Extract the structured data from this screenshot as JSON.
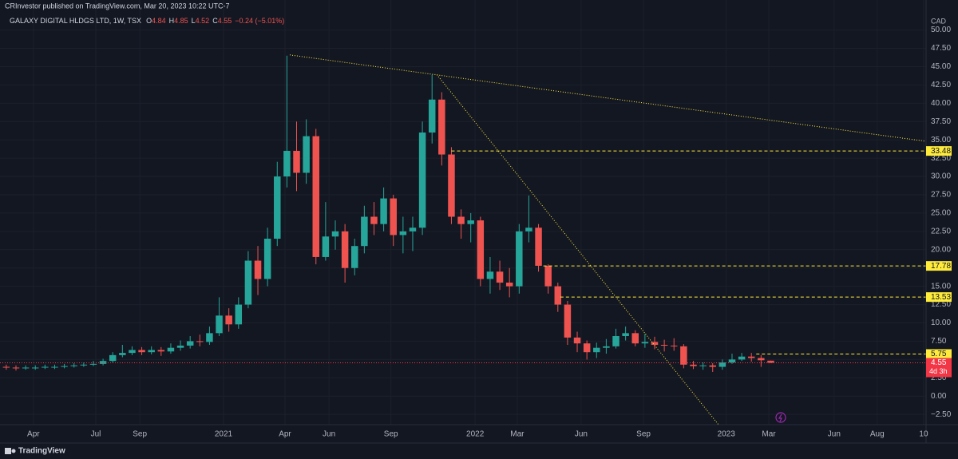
{
  "chart_data": {
    "type": "candlestick",
    "published": "CRInvestor published on TradingView.com, Mar 20, 2023 10:22 UTC-7",
    "symbol": "GALAXY DIGITAL HLDGS LTD, 1W, TSX",
    "ohlc_labels": [
      "O",
      "H",
      "L",
      "C"
    ],
    "change": "−0.24 (−5.01%)",
    "currency": "CAD",
    "countdown": "4d 3h",
    "brand": "TradingView",
    "up_color": "#26a69a",
    "down_color": "#ef5350",
    "grid": true,
    "xlim": [
      -1.3,
      190.1
    ],
    "ylim": [
      -3.9,
      54.1
    ],
    "xticks": [
      {
        "value": 5.6,
        "label": "Apr"
      },
      {
        "value": 18.5,
        "label": "Jul"
      },
      {
        "value": 27.6,
        "label": "Sep"
      },
      {
        "value": 44.9,
        "label": "2021"
      },
      {
        "value": 57.6,
        "label": "Apr"
      },
      {
        "value": 66.7,
        "label": "Jun"
      },
      {
        "value": 79.5,
        "label": "Sep"
      },
      {
        "value": 96.9,
        "label": "2022"
      },
      {
        "value": 105.6,
        "label": "Mar"
      },
      {
        "value": 118.8,
        "label": "Jun"
      },
      {
        "value": 131.7,
        "label": "Sep"
      },
      {
        "value": 148.8,
        "label": "2023"
      },
      {
        "value": 157.6,
        "label": "Mar"
      },
      {
        "value": 171.1,
        "label": "Jun"
      },
      {
        "value": 180,
        "label": "Aug"
      },
      {
        "value": 189.6,
        "label": "10"
      }
    ],
    "yticks": [
      {
        "value": -2.5,
        "label": "−2.50"
      },
      {
        "value": 0,
        "label": "0.00"
      },
      {
        "value": 2.5,
        "label": "2.50"
      },
      {
        "value": 5,
        "label": "5.00"
      },
      {
        "value": 7.5,
        "label": "7.50"
      },
      {
        "value": 10,
        "label": "10.00"
      },
      {
        "value": 12.5,
        "label": "12.50"
      },
      {
        "value": 15,
        "label": "15.00"
      },
      {
        "value": 17.5,
        "label": "17.50"
      },
      {
        "value": 20,
        "label": "20.00"
      },
      {
        "value": 22.5,
        "label": "22.50"
      },
      {
        "value": 25,
        "label": "25.00"
      },
      {
        "value": 27.5,
        "label": "27.50"
      },
      {
        "value": 30,
        "label": "30.00"
      },
      {
        "value": 32.5,
        "label": "32.50"
      },
      {
        "value": 35,
        "label": "35.00"
      },
      {
        "value": 37.5,
        "label": "37.50"
      },
      {
        "value": 40,
        "label": "40.00"
      },
      {
        "value": 42.5,
        "label": "42.50"
      },
      {
        "value": 45,
        "label": "45.00"
      },
      {
        "value": 47.5,
        "label": "47.50"
      },
      {
        "value": 50,
        "label": "50.00"
      }
    ],
    "levels": [
      {
        "value": 33.48,
        "start_x": 92
      },
      {
        "value": 17.78,
        "start_x": 111
      },
      {
        "value": 13.53,
        "start_x": 114.5
      },
      {
        "value": 5.75,
        "start_x": 155
      }
    ],
    "level_color": "#ffeb3b",
    "price_color": "#f23645",
    "trendlines": [
      {
        "x": [
          58.6,
          190.1
        ],
        "y": [
          46.6,
          34.8
        ]
      },
      {
        "x": [
          89,
          147.2
        ],
        "y": [
          43.9,
          -3.9
        ]
      }
    ],
    "x": [
      0,
      2,
      4,
      6,
      8,
      10,
      12,
      14,
      16,
      18,
      20,
      22,
      24,
      26,
      28,
      30,
      32,
      34,
      36,
      38,
      40,
      42,
      44,
      46,
      48,
      50,
      52,
      54,
      56,
      58,
      60,
      62,
      64,
      66,
      68,
      70,
      72,
      74,
      76,
      78,
      80,
      82,
      84,
      86,
      88,
      90,
      92,
      94,
      96,
      98,
      100,
      102,
      104,
      106,
      108,
      110,
      112,
      114,
      116,
      118,
      120,
      122,
      124,
      126,
      128,
      130,
      132,
      134,
      136,
      138,
      140,
      142,
      144,
      146,
      148,
      150,
      152,
      154,
      156,
      158
    ],
    "open": [
      4.0,
      3.9,
      3.8,
      3.9,
      3.9,
      4.0,
      4.0,
      4.1,
      4.2,
      4.3,
      4.4,
      4.8,
      5.6,
      5.9,
      6.3,
      6.0,
      6.3,
      6.1,
      6.6,
      6.9,
      7.5,
      7.4,
      8.6,
      11.0,
      9.8,
      12.5,
      18.5,
      16.0,
      21.5,
      30.0,
      33.5,
      30.5,
      35.5,
      19.0,
      21.8,
      22.5,
      17.5,
      20.5,
      24.5,
      23.5,
      27.0,
      22.0,
      22.5,
      23.0,
      36.0,
      40.5,
      33.0,
      24.5,
      23.5,
      24.0,
      16.0,
      17.0,
      15.5,
      15.0,
      22.5,
      23.0,
      17.8,
      15.0,
      12.5,
      8.0,
      7.2,
      6.0,
      6.6,
      6.8,
      8.2,
      8.6,
      7.2,
      7.4,
      7.0,
      6.9,
      6.8,
      4.3,
      4.1,
      4.2,
      4.0,
      4.6,
      5.0,
      5.4,
      5.2,
      4.84
    ],
    "high": [
      4.3,
      4.2,
      4.2,
      4.2,
      4.3,
      4.3,
      4.4,
      4.5,
      4.6,
      4.8,
      5.1,
      6.0,
      7.0,
      6.8,
      6.7,
      6.8,
      6.7,
      7.2,
      7.6,
      8.2,
      8.4,
      9.5,
      13.5,
      12.0,
      13.5,
      19.8,
      20.5,
      23.0,
      32.0,
      46.5,
      37.5,
      37.8,
      36.5,
      26.5,
      24.0,
      23.5,
      21.5,
      26.0,
      26.5,
      28.5,
      27.5,
      24.5,
      24.5,
      37.5,
      43.9,
      41.5,
      34.0,
      25.5,
      25.0,
      24.5,
      19.0,
      18.5,
      17.5,
      23.5,
      27.4,
      23.5,
      18.0,
      15.5,
      13.0,
      8.8,
      7.6,
      7.3,
      7.8,
      9.2,
      9.5,
      9.0,
      8.5,
      8.1,
      7.7,
      7.9,
      7.1,
      4.8,
      4.6,
      4.5,
      5.0,
      5.8,
      5.9,
      5.9,
      5.6,
      4.85
    ],
    "low": [
      3.6,
      3.5,
      3.6,
      3.6,
      3.7,
      3.7,
      3.8,
      3.9,
      4.0,
      4.1,
      4.2,
      4.6,
      5.3,
      5.6,
      5.6,
      5.7,
      5.5,
      5.8,
      6.2,
      6.5,
      6.8,
      7.0,
      8.2,
      8.8,
      9.2,
      12.0,
      13.8,
      15.0,
      20.5,
      28.5,
      28.0,
      29.0,
      18.0,
      18.5,
      20.0,
      15.5,
      16.5,
      19.5,
      22.0,
      22.5,
      20.5,
      19.5,
      19.8,
      22.0,
      34.5,
      31.5,
      23.5,
      21.5,
      21.0,
      15.0,
      14.0,
      14.5,
      13.5,
      14.0,
      21.0,
      17.0,
      14.0,
      11.5,
      7.0,
      6.0,
      5.0,
      5.2,
      5.8,
      6.5,
      7.6,
      6.8,
      6.6,
      6.4,
      6.1,
      6.2,
      3.8,
      3.7,
      3.6,
      3.3,
      3.6,
      4.4,
      4.8,
      4.7,
      4.0,
      4.52
    ],
    "close": [
      3.9,
      3.8,
      3.9,
      3.9,
      4.0,
      4.0,
      4.1,
      4.2,
      4.3,
      4.4,
      4.8,
      5.6,
      5.9,
      6.3,
      6.0,
      6.3,
      6.1,
      6.6,
      6.9,
      7.5,
      7.4,
      8.6,
      11.0,
      9.8,
      12.5,
      18.5,
      16.0,
      21.5,
      30.0,
      33.5,
      30.5,
      35.5,
      19.0,
      21.8,
      22.5,
      17.5,
      20.5,
      24.5,
      23.5,
      27.0,
      22.0,
      22.5,
      23.0,
      36.0,
      40.5,
      33.0,
      24.5,
      23.5,
      24.0,
      16.0,
      17.0,
      15.5,
      15.0,
      22.5,
      23.0,
      17.8,
      15.0,
      12.5,
      8.0,
      7.2,
      6.0,
      6.6,
      6.8,
      8.2,
      8.6,
      7.2,
      7.4,
      7.0,
      6.9,
      6.8,
      4.3,
      4.1,
      4.2,
      4.0,
      4.6,
      5.0,
      5.4,
      5.2,
      4.9,
      4.55
    ]
  }
}
